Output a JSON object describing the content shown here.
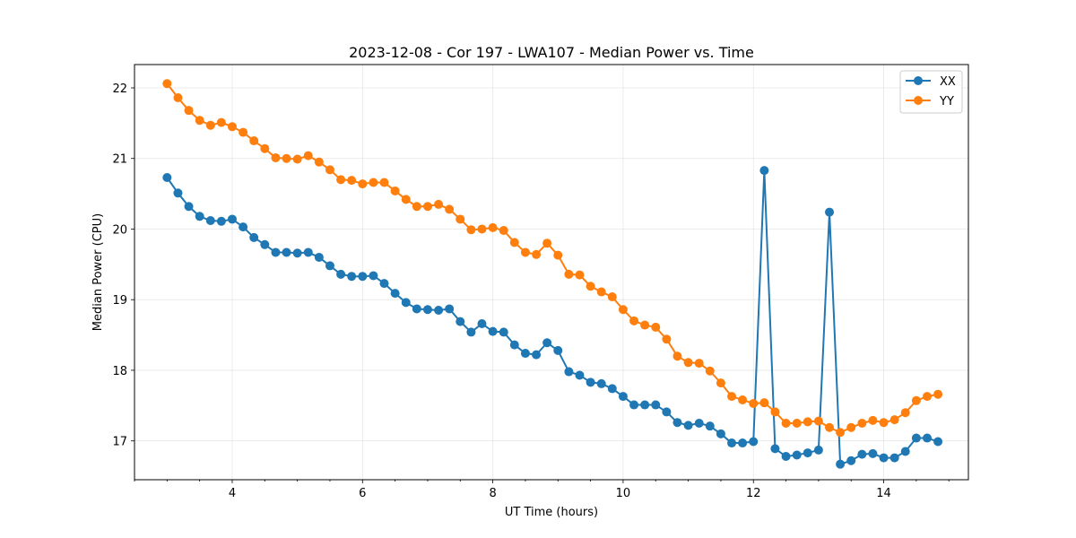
{
  "chart_data": {
    "type": "line",
    "title": "2023-12-08 - Cor 197 - LWA107 - Median Power vs. Time",
    "xlabel": "UT Time (hours)",
    "ylabel": "Median Power (CPU)",
    "xlim": [
      2.5,
      15.3
    ],
    "ylim": [
      16.45,
      22.33
    ],
    "xticks": [
      4,
      6,
      8,
      10,
      12,
      14
    ],
    "xtick_labels": [
      "4",
      "6",
      "8",
      "10",
      "12",
      "14"
    ],
    "yticks": [
      17,
      18,
      19,
      20,
      21,
      22
    ],
    "ytick_labels": [
      "17",
      "18",
      "19",
      "20",
      "21",
      "22"
    ],
    "grid": true,
    "legend_position": "top-right",
    "x": [
      3.0,
      3.167,
      3.333,
      3.5,
      3.667,
      3.833,
      4.0,
      4.167,
      4.333,
      4.5,
      4.667,
      4.833,
      5.0,
      5.167,
      5.333,
      5.5,
      5.667,
      5.833,
      6.0,
      6.167,
      6.333,
      6.5,
      6.667,
      6.833,
      7.0,
      7.167,
      7.333,
      7.5,
      7.667,
      7.833,
      8.0,
      8.167,
      8.333,
      8.5,
      8.667,
      8.833,
      9.0,
      9.167,
      9.333,
      9.5,
      9.667,
      9.833,
      10.0,
      10.167,
      10.333,
      10.5,
      10.667,
      10.833,
      11.0,
      11.167,
      11.333,
      11.5,
      11.667,
      11.833,
      12.0,
      12.167,
      12.333,
      12.5,
      12.667,
      12.833,
      13.0,
      13.167,
      13.333,
      13.5,
      13.667,
      13.833,
      14.0,
      14.167,
      14.333,
      14.5,
      14.667,
      14.833
    ],
    "series": [
      {
        "name": "XX",
        "color": "#1f77b4",
        "values": [
          20.73,
          20.51,
          20.32,
          20.18,
          20.12,
          20.11,
          20.14,
          20.03,
          19.88,
          19.78,
          19.67,
          19.67,
          19.66,
          19.67,
          19.6,
          19.48,
          19.36,
          19.33,
          19.33,
          19.34,
          19.23,
          19.09,
          18.96,
          18.87,
          18.86,
          18.85,
          18.87,
          18.69,
          18.54,
          18.66,
          18.55,
          18.54,
          18.36,
          18.24,
          18.22,
          18.39,
          18.28,
          17.98,
          17.93,
          17.83,
          17.81,
          17.74,
          17.63,
          17.51,
          17.51,
          17.51,
          17.41,
          17.26,
          17.22,
          17.25,
          17.21,
          17.1,
          16.97,
          16.97,
          16.99,
          20.83,
          16.89,
          16.78,
          16.8,
          16.83,
          16.87,
          20.24,
          16.67,
          16.72,
          16.81,
          16.82,
          16.76,
          16.76,
          16.85,
          17.04,
          17.04,
          16.99
        ]
      },
      {
        "name": "YY",
        "color": "#ff7f0e",
        "values": [
          22.06,
          21.86,
          21.68,
          21.54,
          21.47,
          21.51,
          21.45,
          21.37,
          21.25,
          21.14,
          21.01,
          21.0,
          20.99,
          21.04,
          20.95,
          20.84,
          20.7,
          20.69,
          20.64,
          20.66,
          20.66,
          20.54,
          20.42,
          20.32,
          20.32,
          20.35,
          20.28,
          20.14,
          19.99,
          20.0,
          20.02,
          19.98,
          19.81,
          19.67,
          19.64,
          19.8,
          19.63,
          19.36,
          19.35,
          19.19,
          19.11,
          19.04,
          18.86,
          18.7,
          18.64,
          18.61,
          18.44,
          18.2,
          18.11,
          18.1,
          17.99,
          17.82,
          17.63,
          17.58,
          17.53,
          17.54,
          17.41,
          17.25,
          17.25,
          17.27,
          17.28,
          17.19,
          17.12,
          17.19,
          17.25,
          17.29,
          17.26,
          17.3,
          17.4,
          17.57,
          17.63,
          17.66
        ]
      }
    ]
  }
}
